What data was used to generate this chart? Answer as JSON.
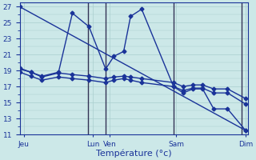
{
  "xlabel": "Température (°c)",
  "background_color": "#cce8e8",
  "grid_color": "#aacece",
  "line_color": "#1a3399",
  "ylim": [
    11,
    27.5
  ],
  "xlim": [
    0,
    16.5
  ],
  "ytick_vals": [
    11,
    13,
    15,
    17,
    19,
    21,
    23,
    25,
    27
  ],
  "xtick_positions": [
    0.3,
    5.3,
    6.5,
    11.3,
    16.3
  ],
  "xtick_labels": [
    "Jeu",
    "Lun",
    "Ven",
    "Sam",
    "Dim"
  ],
  "vlines": [
    4.9,
    6.2,
    11.1,
    16.0
  ],
  "series": [
    {
      "x": [
        0.0,
        16.3
      ],
      "y": [
        27.0,
        11.5
      ],
      "marker": "D",
      "ms": 2.5,
      "lw": 1.0
    },
    {
      "x": [
        0.0,
        0.8,
        1.6,
        2.8,
        3.8,
        5.0,
        6.2,
        6.8,
        7.5,
        8.0,
        8.8,
        11.1,
        11.8,
        12.5,
        13.2,
        14.0,
        15.0,
        16.3
      ],
      "y": [
        19.2,
        18.8,
        18.3,
        18.8,
        26.2,
        24.5,
        19.2,
        20.8,
        21.4,
        25.8,
        26.7,
        17.0,
        16.2,
        16.7,
        16.7,
        14.2,
        14.2,
        11.5
      ],
      "marker": "D",
      "ms": 2.5,
      "lw": 1.0
    },
    {
      "x": [
        0.0,
        0.8,
        1.6,
        2.8,
        3.8,
        5.0,
        6.2,
        6.8,
        7.5,
        8.0,
        8.8,
        11.1,
        11.8,
        12.5,
        13.2,
        14.0,
        15.0,
        16.3
      ],
      "y": [
        19.3,
        18.8,
        18.2,
        18.7,
        18.5,
        18.3,
        18.0,
        18.2,
        18.3,
        18.2,
        18.0,
        17.5,
        17.0,
        17.2,
        17.2,
        16.7,
        16.7,
        15.5
      ],
      "marker": "D",
      "ms": 2.5,
      "lw": 1.0
    },
    {
      "x": [
        0.0,
        0.8,
        1.6,
        2.8,
        3.8,
        5.0,
        6.2,
        6.8,
        7.5,
        8.0,
        8.8,
        11.1,
        11.8,
        12.5,
        13.2,
        14.0,
        15.0,
        16.3
      ],
      "y": [
        18.8,
        18.3,
        17.8,
        18.2,
        18.0,
        17.8,
        17.5,
        17.8,
        18.0,
        17.8,
        17.5,
        17.0,
        16.5,
        16.8,
        16.8,
        16.2,
        16.2,
        14.8
      ],
      "marker": "D",
      "ms": 2.5,
      "lw": 1.0
    }
  ]
}
